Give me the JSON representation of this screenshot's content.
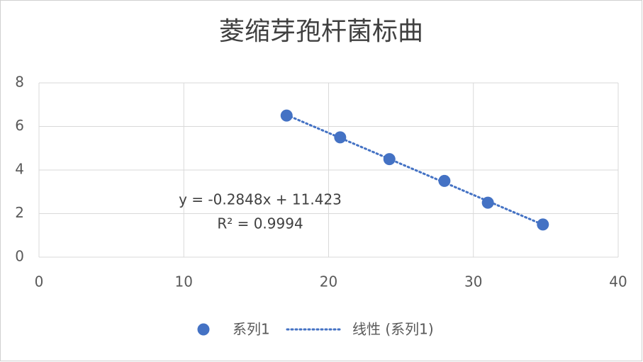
{
  "chart_data": {
    "type": "scatter",
    "title": "菱缩芽孢杆菌标曲",
    "series": [
      {
        "name": "系列1",
        "color": "#4472c4",
        "x": [
          17.1,
          20.8,
          24.2,
          28.0,
          31.0,
          34.8
        ],
        "values": [
          6.5,
          5.5,
          4.5,
          3.5,
          2.5,
          1.5
        ]
      }
    ],
    "trendline": {
      "name": "线性 (系列1)",
      "equation": "y = -0.2848x + 11.423",
      "r2_label": "R² = 0.9994"
    },
    "xlim": [
      0,
      40
    ],
    "xticks": [
      0,
      10,
      20,
      30,
      40
    ],
    "ylim": [
      0,
      8
    ],
    "yticks": [
      0,
      2,
      4,
      6,
      8
    ],
    "grid": true,
    "legend": "bottom"
  }
}
